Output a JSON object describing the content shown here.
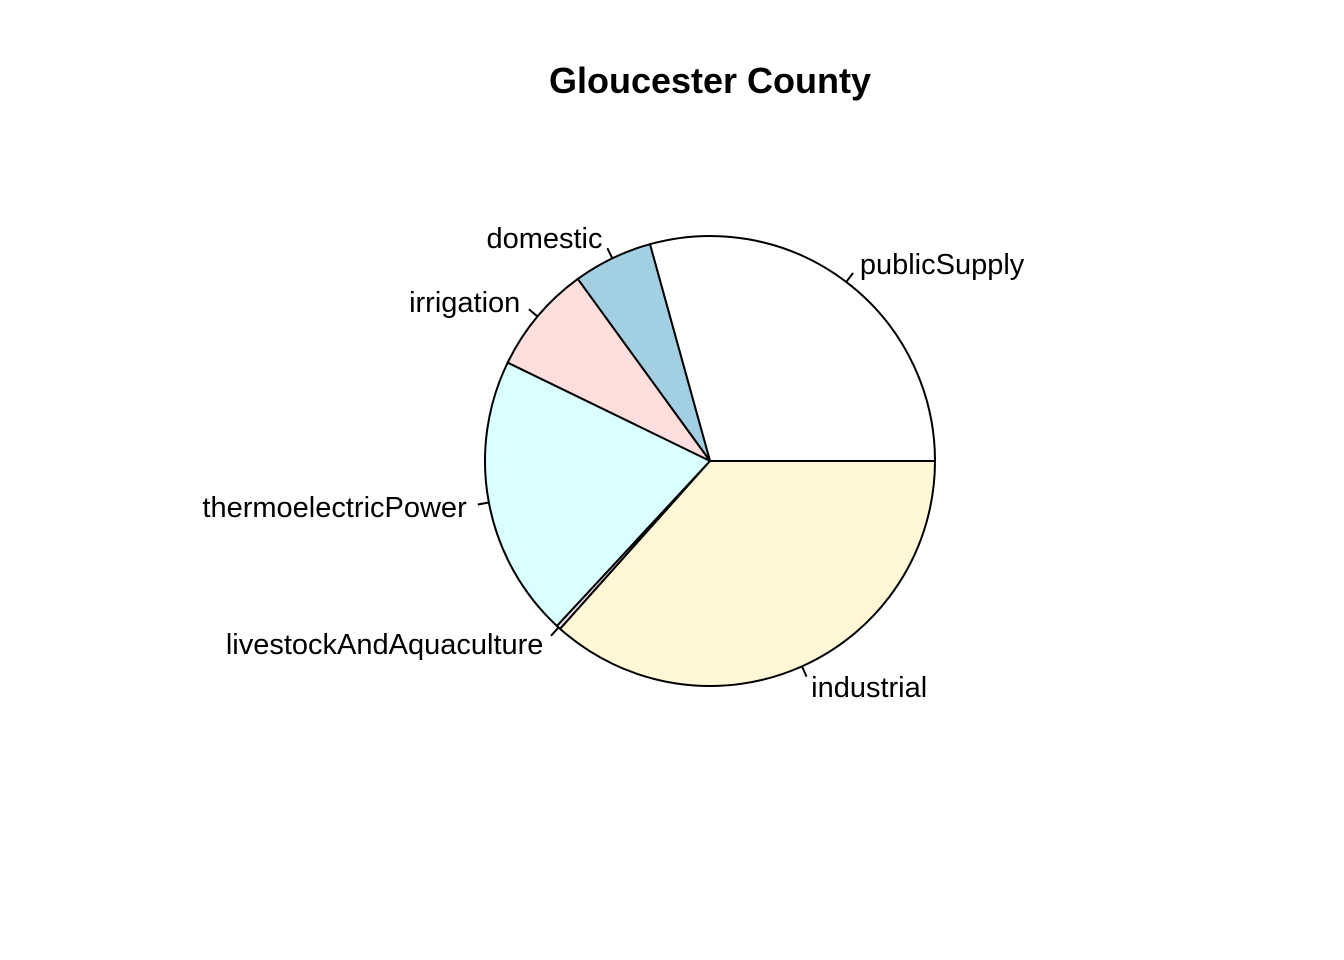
{
  "chart_data": {
    "type": "pie",
    "title": "Gloucester County",
    "direction": "counterclockwise",
    "start": "3 o'clock",
    "slices": [
      {
        "label": "publicSupply",
        "value": 29.3,
        "color": "#FFFFFF"
      },
      {
        "label": "domestic",
        "value": 5.7,
        "color": "#A2CFE1"
      },
      {
        "label": "irrigation",
        "value": 7.8,
        "color": "#FFDEDE"
      },
      {
        "label": "thermoelectricPower",
        "value": 20.3,
        "color": "#D9FFFF"
      },
      {
        "label": "livestockAndAquaculture",
        "value": 0.3,
        "color": "#F3E3F3"
      },
      {
        "label": "industrial",
        "value": 36.6,
        "color": "#FFF7D6"
      }
    ]
  }
}
